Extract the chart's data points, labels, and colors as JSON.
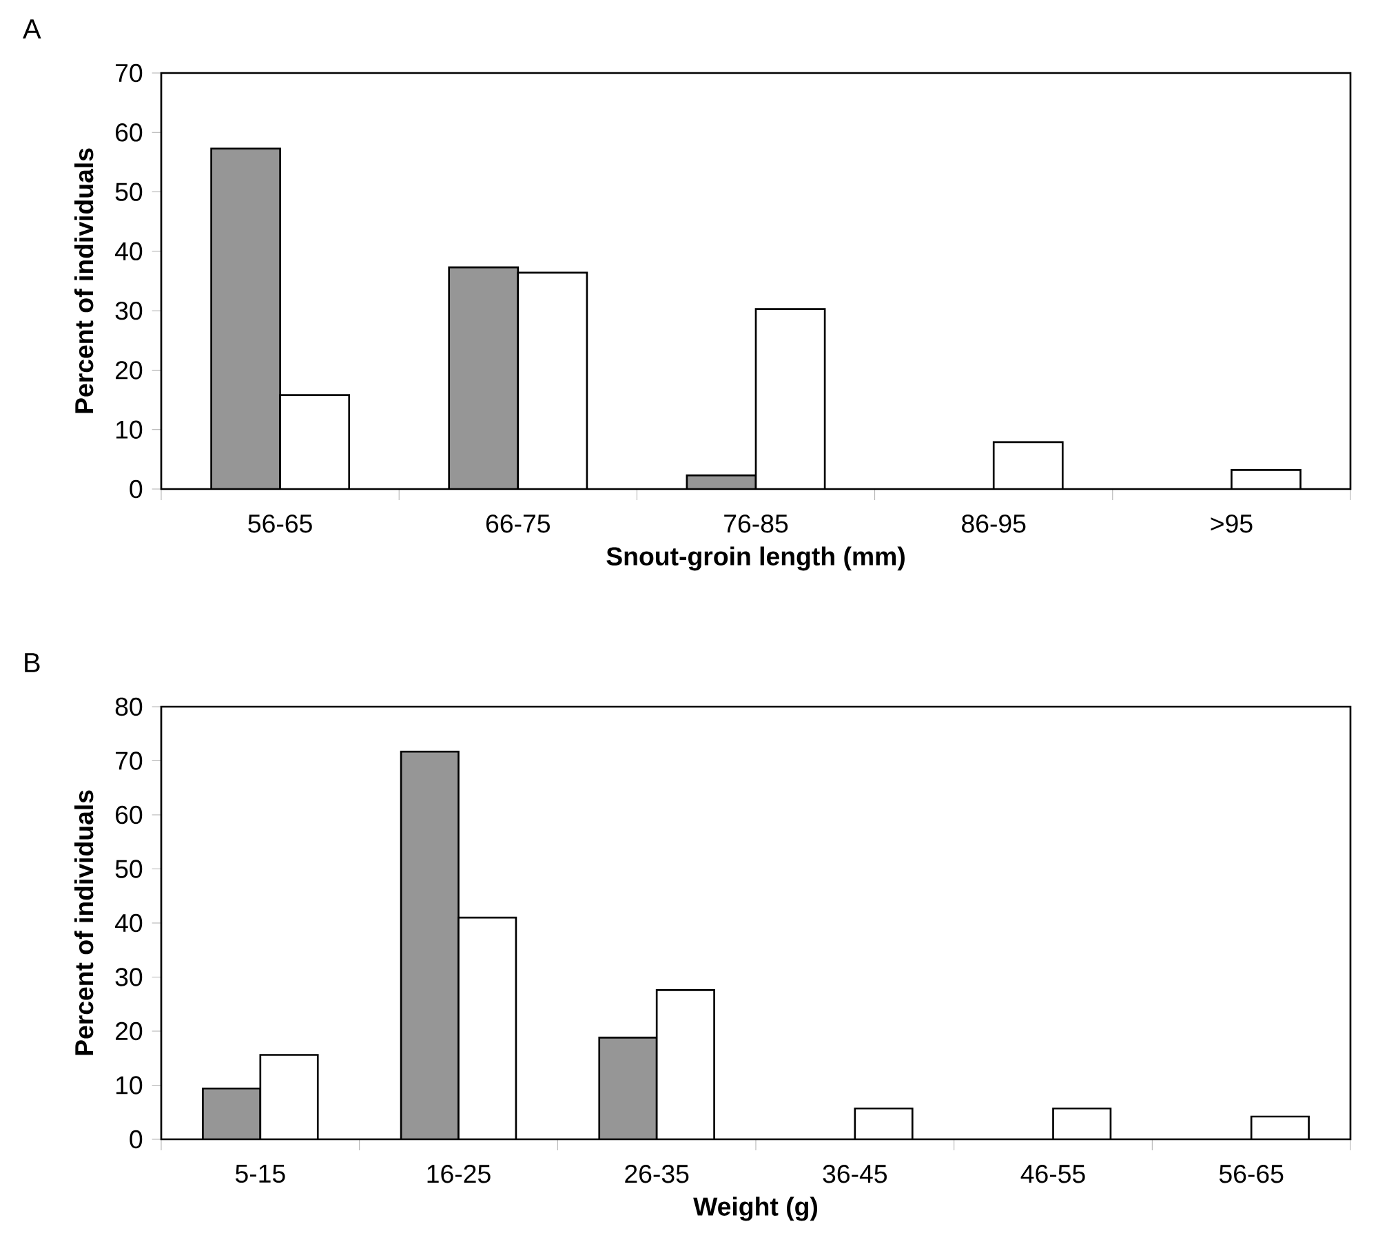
{
  "chart_data": [
    {
      "type": "bar",
      "title": "A",
      "xlabel": "Snout-groin length (mm)",
      "ylabel": "Percent of individuals",
      "categories": [
        "56-65",
        "66-75",
        "76-85",
        "86-95",
        ">95"
      ],
      "ylim": [
        0,
        70
      ],
      "yticks": [
        0,
        10,
        20,
        30,
        40,
        50,
        60,
        70
      ],
      "series": [
        {
          "color": "#969696",
          "values": [
            57.3,
            37.3,
            2.3,
            null,
            null
          ]
        },
        {
          "color": "#ffffff",
          "values": [
            15.8,
            36.4,
            30.3,
            7.9,
            3.2
          ]
        }
      ]
    },
    {
      "type": "bar",
      "title": "B",
      "xlabel": "Weight (g)",
      "ylabel": "Percent of individuals",
      "categories": [
        "5-15",
        "16-25",
        "26-35",
        "36-45",
        "46-55",
        "56-65"
      ],
      "ylim": [
        0,
        80
      ],
      "yticks": [
        0,
        10,
        20,
        30,
        40,
        50,
        60,
        70,
        80
      ],
      "series": [
        {
          "color": "#969696",
          "values": [
            9.4,
            71.7,
            18.8,
            null,
            null,
            null
          ]
        },
        {
          "color": "#ffffff",
          "values": [
            15.6,
            41.0,
            27.6,
            5.7,
            5.7,
            4.2
          ]
        }
      ]
    }
  ]
}
